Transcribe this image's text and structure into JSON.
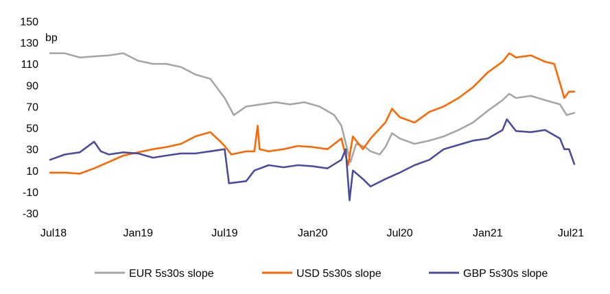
{
  "chart_data": {
    "type": "line",
    "unit_label": "bp",
    "ylim": [
      -30,
      150
    ],
    "y_ticks": [
      150,
      130,
      110,
      90,
      70,
      50,
      30,
      10,
      -10,
      -30
    ],
    "x_range": [
      "2018-07-01",
      "2021-07-01"
    ],
    "x_ticks": [
      {
        "label": "Jul18",
        "date": "2018-07-01"
      },
      {
        "label": "Jan19",
        "date": "2019-01-01"
      },
      {
        "label": "Jul19",
        "date": "2019-07-01"
      },
      {
        "label": "Jan20",
        "date": "2020-01-01"
      },
      {
        "label": "Jul20",
        "date": "2020-07-01"
      },
      {
        "label": "Jan21",
        "date": "2021-01-01"
      },
      {
        "label": "Jul21",
        "date": "2021-07-01"
      }
    ],
    "grid": false,
    "legend_position": "bottom",
    "series": [
      {
        "name": "EUR 5s30s slope",
        "color": "#a6a6a6",
        "points": [
          [
            "2018-07-01",
            120
          ],
          [
            "2018-08-01",
            120
          ],
          [
            "2018-09-01",
            116
          ],
          [
            "2018-10-01",
            117
          ],
          [
            "2018-11-01",
            118
          ],
          [
            "2018-12-01",
            120
          ],
          [
            "2019-01-01",
            113
          ],
          [
            "2019-02-01",
            110
          ],
          [
            "2019-03-01",
            110
          ],
          [
            "2019-04-01",
            107
          ],
          [
            "2019-05-01",
            100
          ],
          [
            "2019-06-01",
            96
          ],
          [
            "2019-07-01",
            78
          ],
          [
            "2019-07-20",
            62
          ],
          [
            "2019-08-15",
            70
          ],
          [
            "2019-09-15",
            72
          ],
          [
            "2019-10-15",
            74
          ],
          [
            "2019-11-15",
            72
          ],
          [
            "2019-12-15",
            74
          ],
          [
            "2020-01-15",
            70
          ],
          [
            "2020-02-15",
            62
          ],
          [
            "2020-03-01",
            52
          ],
          [
            "2020-03-20",
            18
          ],
          [
            "2020-04-01",
            35
          ],
          [
            "2020-04-20",
            32
          ],
          [
            "2020-05-01",
            28
          ],
          [
            "2020-05-20",
            25
          ],
          [
            "2020-06-01",
            32
          ],
          [
            "2020-06-15",
            45
          ],
          [
            "2020-07-01",
            40
          ],
          [
            "2020-08-01",
            35
          ],
          [
            "2020-09-01",
            38
          ],
          [
            "2020-10-01",
            42
          ],
          [
            "2020-11-01",
            48
          ],
          [
            "2020-12-01",
            55
          ],
          [
            "2021-01-01",
            66
          ],
          [
            "2021-02-01",
            76
          ],
          [
            "2021-02-15",
            82
          ],
          [
            "2021-03-01",
            78
          ],
          [
            "2021-04-01",
            80
          ],
          [
            "2021-05-01",
            76
          ],
          [
            "2021-06-01",
            72
          ],
          [
            "2021-06-15",
            62
          ],
          [
            "2021-07-01",
            64
          ]
        ]
      },
      {
        "name": "USD 5s30s slope",
        "color": "#ff6600",
        "points": [
          [
            "2018-07-01",
            8
          ],
          [
            "2018-08-01",
            8
          ],
          [
            "2018-09-01",
            7
          ],
          [
            "2018-10-01",
            12
          ],
          [
            "2018-11-01",
            18
          ],
          [
            "2018-12-01",
            24
          ],
          [
            "2019-01-01",
            27
          ],
          [
            "2019-02-01",
            30
          ],
          [
            "2019-03-01",
            32
          ],
          [
            "2019-04-01",
            35
          ],
          [
            "2019-05-01",
            42
          ],
          [
            "2019-06-01",
            46
          ],
          [
            "2019-06-20",
            38
          ],
          [
            "2019-07-01",
            33
          ],
          [
            "2019-07-15",
            25
          ],
          [
            "2019-08-15",
            28
          ],
          [
            "2019-09-01",
            28
          ],
          [
            "2019-09-08",
            52
          ],
          [
            "2019-09-12",
            30
          ],
          [
            "2019-10-01",
            28
          ],
          [
            "2019-11-01",
            30
          ],
          [
            "2019-12-01",
            33
          ],
          [
            "2020-01-01",
            32
          ],
          [
            "2020-02-01",
            30
          ],
          [
            "2020-03-01",
            40
          ],
          [
            "2020-03-15",
            15
          ],
          [
            "2020-03-25",
            42
          ],
          [
            "2020-04-15",
            30
          ],
          [
            "2020-05-01",
            40
          ],
          [
            "2020-06-01",
            55
          ],
          [
            "2020-06-15",
            68
          ],
          [
            "2020-07-01",
            60
          ],
          [
            "2020-08-01",
            55
          ],
          [
            "2020-09-01",
            65
          ],
          [
            "2020-10-01",
            70
          ],
          [
            "2020-11-01",
            78
          ],
          [
            "2020-12-01",
            88
          ],
          [
            "2021-01-01",
            102
          ],
          [
            "2021-02-01",
            112
          ],
          [
            "2021-02-15",
            120
          ],
          [
            "2021-03-01",
            116
          ],
          [
            "2021-04-01",
            118
          ],
          [
            "2021-05-01",
            112
          ],
          [
            "2021-05-20",
            110
          ],
          [
            "2021-06-01",
            92
          ],
          [
            "2021-06-10",
            78
          ],
          [
            "2021-06-20",
            84
          ],
          [
            "2021-07-01",
            84
          ]
        ]
      },
      {
        "name": "GBP 5s30s slope",
        "color": "#4b4b9b",
        "points": [
          [
            "2018-07-01",
            20
          ],
          [
            "2018-08-01",
            25
          ],
          [
            "2018-09-01",
            27
          ],
          [
            "2018-10-01",
            37
          ],
          [
            "2018-10-15",
            28
          ],
          [
            "2018-11-01",
            25
          ],
          [
            "2018-12-01",
            27
          ],
          [
            "2019-01-01",
            26
          ],
          [
            "2019-02-01",
            22
          ],
          [
            "2019-03-01",
            24
          ],
          [
            "2019-04-01",
            26
          ],
          [
            "2019-05-01",
            26
          ],
          [
            "2019-06-01",
            28
          ],
          [
            "2019-07-01",
            30
          ],
          [
            "2019-07-10",
            -2
          ],
          [
            "2019-08-15",
            0
          ],
          [
            "2019-09-01",
            10
          ],
          [
            "2019-10-01",
            15
          ],
          [
            "2019-11-01",
            13
          ],
          [
            "2019-12-01",
            15
          ],
          [
            "2020-01-01",
            14
          ],
          [
            "2020-02-01",
            12
          ],
          [
            "2020-03-01",
            20
          ],
          [
            "2020-03-10",
            30
          ],
          [
            "2020-03-18",
            -18
          ],
          [
            "2020-03-25",
            10
          ],
          [
            "2020-04-15",
            2
          ],
          [
            "2020-05-01",
            -5
          ],
          [
            "2020-06-01",
            2
          ],
          [
            "2020-07-01",
            8
          ],
          [
            "2020-08-01",
            15
          ],
          [
            "2020-09-01",
            20
          ],
          [
            "2020-10-01",
            30
          ],
          [
            "2020-11-01",
            34
          ],
          [
            "2020-12-01",
            38
          ],
          [
            "2021-01-01",
            40
          ],
          [
            "2021-02-01",
            48
          ],
          [
            "2021-02-10",
            58
          ],
          [
            "2021-03-01",
            47
          ],
          [
            "2021-04-01",
            46
          ],
          [
            "2021-05-01",
            48
          ],
          [
            "2021-06-01",
            40
          ],
          [
            "2021-06-10",
            30
          ],
          [
            "2021-06-20",
            30
          ],
          [
            "2021-07-01",
            16
          ]
        ]
      }
    ]
  }
}
